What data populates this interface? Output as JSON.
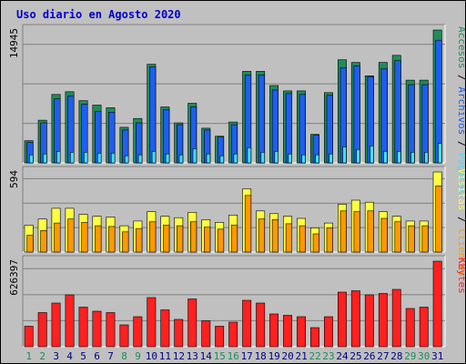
{
  "chart_data": {
    "type": "bar",
    "title": "Uso diario en Agosto 2020",
    "categories": [
      "1",
      "2",
      "3",
      "4",
      "5",
      "6",
      "7",
      "8",
      "9",
      "10",
      "11",
      "12",
      "13",
      "14",
      "15",
      "16",
      "17",
      "18",
      "19",
      "20",
      "21",
      "22",
      "23",
      "24",
      "25",
      "26",
      "27",
      "28",
      "29",
      "30",
      "31"
    ],
    "weekend_days": [
      "1",
      "2",
      "8",
      "9",
      "15",
      "16",
      "22",
      "23",
      "29",
      "30"
    ],
    "panels": [
      {
        "id": "top",
        "max_label": "14945",
        "ymax": 14945,
        "series": [
          {
            "name": "Accesos",
            "color": "#1f8c5a",
            "values": [
              2500,
              4800,
              7700,
              8000,
              7000,
              6500,
              6200,
              4000,
              5000,
              11100,
              6300,
              4500,
              6700,
              3900,
              3000,
              4600,
              10300,
              10300,
              8700,
              8100,
              8100,
              3200,
              7900,
              11600,
              11300,
              9800,
              11300,
              12100,
              9300,
              9300,
              14945
            ]
          },
          {
            "name": "Archivos",
            "color": "#1e5ef0",
            "values": [
              2300,
              4500,
              7200,
              7500,
              6600,
              5800,
              5700,
              3700,
              4500,
              10800,
              6000,
              4300,
              6300,
              3700,
              2900,
              4300,
              9900,
              9900,
              8200,
              7800,
              7700,
              3100,
              7600,
              10700,
              10900,
              9700,
              10600,
              11500,
              8800,
              8800,
              13800
            ]
          },
          {
            "name": "Páginas",
            "color": "#40e0ff",
            "values": [
              900,
              1000,
              1300,
              1200,
              1200,
              1100,
              1100,
              800,
              900,
              1300,
              1000,
              900,
              1600,
              1000,
              800,
              1000,
              1700,
              1200,
              1300,
              1000,
              900,
              900,
              1000,
              1800,
              1500,
              1900,
              1300,
              1300,
              1200,
              1200,
              2200
            ]
          }
        ]
      },
      {
        "id": "middle",
        "max_label": "594",
        "ymax": 594,
        "series": [
          {
            "name": "Visitas",
            "color": "#ffff40",
            "values": [
              200,
              245,
              325,
              325,
              280,
              265,
              260,
              195,
              230,
              300,
              265,
              255,
              295,
              240,
              220,
              275,
              470,
              305,
              285,
              265,
              250,
              180,
              215,
              355,
              385,
              370,
              300,
              265,
              230,
              230,
              594
            ]
          },
          {
            "name": "Clientes",
            "color": "#ff9900",
            "values": [
              125,
              160,
              215,
              245,
              220,
              195,
              190,
              150,
              175,
              225,
              200,
              195,
              225,
              185,
              170,
              200,
              420,
              245,
              240,
              210,
              195,
              135,
              180,
              305,
              300,
              305,
              250,
              225,
              195,
              195,
              490
            ]
          }
        ]
      },
      {
        "id": "bottom",
        "max_label": "626397",
        "ymax": 626397,
        "series": [
          {
            "name": "KBytes",
            "color": "#ff2020",
            "values": [
              150000,
              250000,
              320000,
              380000,
              290000,
              260000,
              250000,
              160000,
              220000,
              360000,
              270000,
              200000,
              350000,
              190000,
              150000,
              180000,
              340000,
              320000,
              240000,
              230000,
              220000,
              140000,
              220000,
              400000,
              410000,
              380000,
              390000,
              420000,
              280000,
              290000,
              626397
            ]
          }
        ]
      }
    ],
    "side_labels": {
      "top": [
        {
          "text": "Accesos",
          "color": "#1f8c5a"
        },
        {
          "text": " / ",
          "color": "#000000"
        },
        {
          "text": "Archivos",
          "color": "#1e5ef0"
        },
        {
          "text": " / ",
          "color": "#000000"
        },
        {
          "text": "Páginas",
          "color": "#40e0ff"
        }
      ],
      "middle": [
        {
          "text": "Visitas",
          "color": "#ffff40"
        },
        {
          "text": " / ",
          "color": "#000000"
        },
        {
          "text": "Clientes",
          "color": "#ff9900"
        }
      ],
      "bottom": [
        {
          "text": "KBytes",
          "color": "#ff2020"
        }
      ]
    },
    "legend": "right-side-vertical",
    "grid": true
  }
}
